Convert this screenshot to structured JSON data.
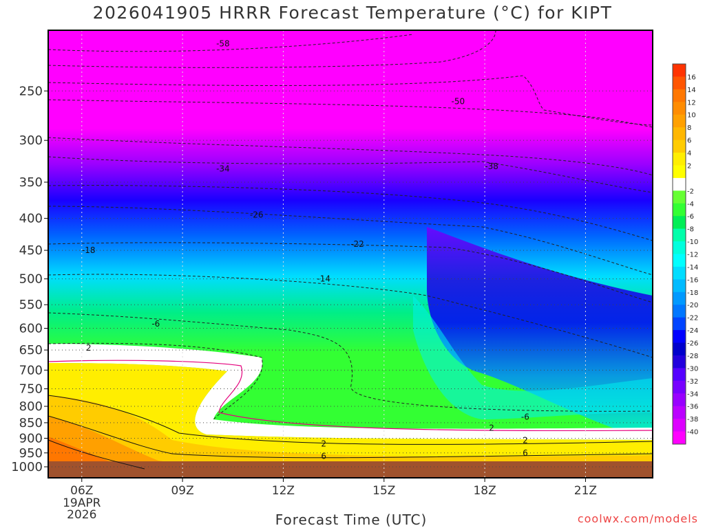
{
  "chart_data": {
    "type": "heatmap",
    "title": "2026041905 HRRR Forecast Temperature (°C) for KIPT",
    "xlabel": "Forecast Time (UTC)",
    "ylabel": "",
    "x_ticks": [
      "06Z",
      "09Z",
      "12Z",
      "15Z",
      "18Z",
      "21Z"
    ],
    "x_date_label": [
      "19APR",
      "2026"
    ],
    "y_ticks": [
      250,
      300,
      350,
      400,
      450,
      500,
      550,
      600,
      650,
      700,
      750,
      800,
      850,
      900,
      950,
      1000
    ],
    "ylim": [
      1000,
      200
    ],
    "grid": true,
    "contour_levels_labeled": [
      {
        "label": "-58",
        "x": "10Z",
        "p": 210
      },
      {
        "label": "-50",
        "x": "17Z",
        "p": 260
      },
      {
        "label": "-38",
        "x": "18Z",
        "p": 330
      },
      {
        "label": "-34",
        "x": "10Z",
        "p": 333
      },
      {
        "label": "-26",
        "x": "11Z",
        "p": 395
      },
      {
        "label": "-22",
        "x": "14Z",
        "p": 440
      },
      {
        "label": "-18",
        "x": "06Z",
        "p": 450
      },
      {
        "label": "-14",
        "x": "13Z",
        "p": 500
      },
      {
        "label": "-6",
        "x": "08Z",
        "p": 590
      },
      {
        "label": "-6",
        "x": "19Z",
        "p": 832
      },
      {
        "label": "2",
        "x": "06Z",
        "p": 645
      },
      {
        "label": "2",
        "x": "13Z",
        "p": 918
      },
      {
        "label": "2",
        "x": "18Z",
        "p": 867
      },
      {
        "label": "2",
        "x": "19Z",
        "p": 907
      },
      {
        "label": "6",
        "x": "13Z",
        "p": 962
      },
      {
        "label": "6",
        "x": "19Z",
        "p": 951
      }
    ],
    "colorbar": {
      "labels": [
        "16",
        "14",
        "12",
        "10",
        "8",
        "6",
        "4",
        "2",
        "-2",
        "-4",
        "-6",
        "-8",
        "-10",
        "-12",
        "-14",
        "-16",
        "-18",
        "-20",
        "-22",
        "-24",
        "-26",
        "-28",
        "-30",
        "-32",
        "-34",
        "-36",
        "-38",
        "-40"
      ],
      "colors": [
        "#ff3300",
        "#ff5500",
        "#ff7700",
        "#ff8c00",
        "#ffa000",
        "#ffb700",
        "#ffcc00",
        "#ffee00",
        "#ffff00",
        "#ffffff",
        "#66ff33",
        "#33ff33",
        "#00ee55",
        "#00ffaa",
        "#00ffdd",
        "#00ffff",
        "#00ddff",
        "#00bbff",
        "#0099ff",
        "#0077ff",
        "#0044ff",
        "#0000ff",
        "#0000cc",
        "#2200dd",
        "#5500ff",
        "#7700ff",
        "#9900ff",
        "#bb00ff",
        "#dd00ff",
        "#ff00ff"
      ]
    }
  },
  "credit": "coolwx.com/models"
}
